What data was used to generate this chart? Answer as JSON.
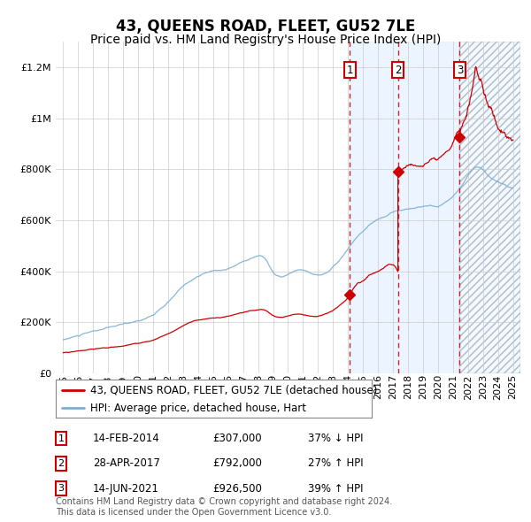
{
  "title": "43, QUEENS ROAD, FLEET, GU52 7LE",
  "subtitle": "Price paid vs. HM Land Registry's House Price Index (HPI)",
  "ylim": [
    0,
    1300000
  ],
  "xlim": [
    1994.5,
    2025.5
  ],
  "yticks": [
    0,
    200000,
    400000,
    600000,
    800000,
    1000000,
    1200000
  ],
  "ytick_labels": [
    "£0",
    "£200K",
    "£400K",
    "£600K",
    "£800K",
    "£1M",
    "£1.2M"
  ],
  "xticks": [
    1995,
    1996,
    1997,
    1998,
    1999,
    2000,
    2001,
    2002,
    2003,
    2004,
    2005,
    2006,
    2007,
    2008,
    2009,
    2010,
    2011,
    2012,
    2013,
    2014,
    2015,
    2016,
    2017,
    2018,
    2019,
    2020,
    2021,
    2022,
    2023,
    2024,
    2025
  ],
  "sale_color": "#cc0000",
  "hpi_color": "#7aafd4",
  "background_color": "#ffffff",
  "grid_color": "#cccccc",
  "shade_color": "#ddeeff",
  "hatch_color": "#bbccdd",
  "sale_dates_decimal": [
    2014.12,
    2017.33,
    2021.45
  ],
  "sale_prices": [
    307000,
    792000,
    926500
  ],
  "sale_labels": [
    "1",
    "2",
    "3"
  ],
  "transactions": [
    {
      "label": "1",
      "date": "14-FEB-2014",
      "price": "£307,000",
      "hpi_change": "37% ↓ HPI"
    },
    {
      "label": "2",
      "date": "28-APR-2017",
      "price": "£792,000",
      "hpi_change": "27% ↑ HPI"
    },
    {
      "label": "3",
      "date": "14-JUN-2021",
      "price": "£926,500",
      "hpi_change": "39% ↑ HPI"
    }
  ],
  "legend_line1": "43, QUEENS ROAD, FLEET, GU52 7LE (detached house)",
  "legend_line2": "HPI: Average price, detached house, Hart",
  "footer": "Contains HM Land Registry data © Crown copyright and database right 2024.\nThis data is licensed under the Open Government Licence v3.0.",
  "title_fontsize": 12,
  "subtitle_fontsize": 10,
  "tick_fontsize": 8,
  "legend_fontsize": 8.5,
  "table_fontsize": 8.5,
  "footer_fontsize": 7
}
